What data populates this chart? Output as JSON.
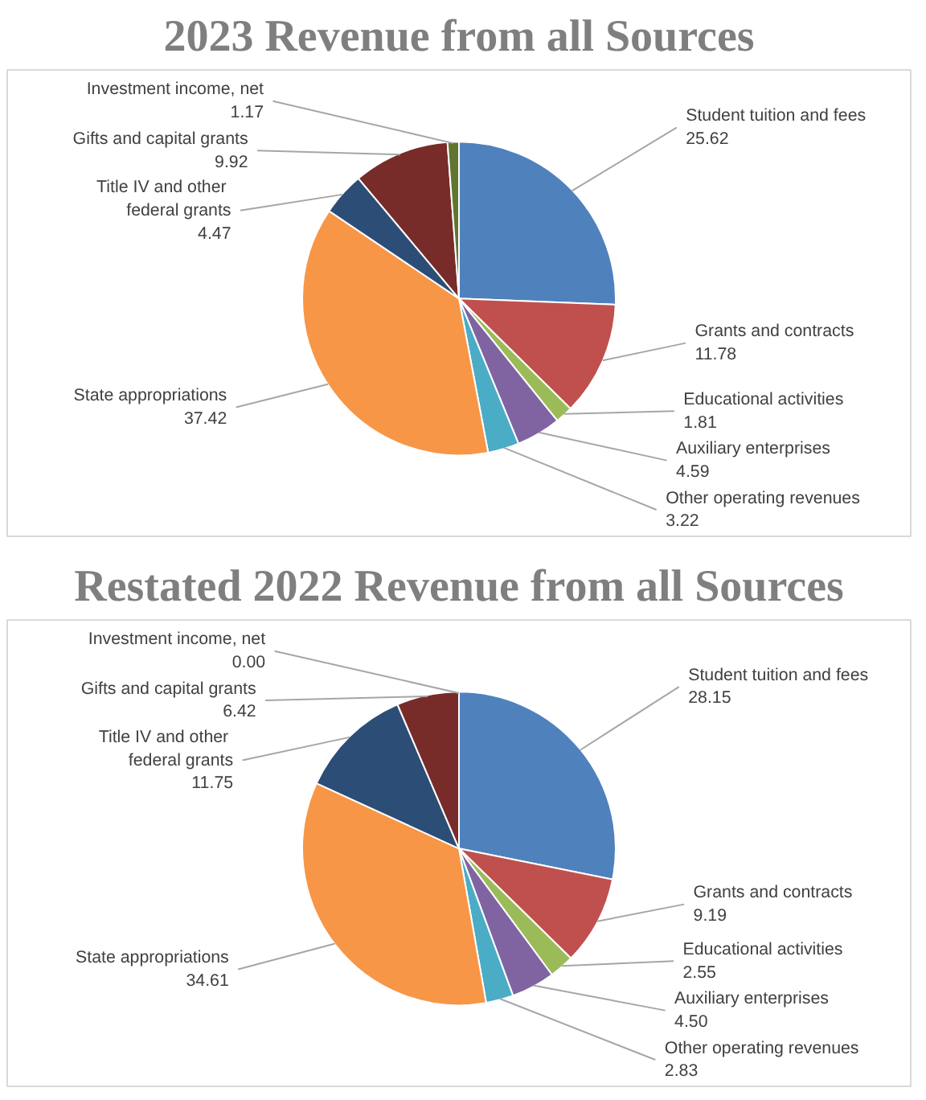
{
  "chart_data": [
    {
      "type": "pie",
      "title": "2023 Revenue from all Sources",
      "categories": [
        "Student tuition and fees",
        "Grants and contracts",
        "Educational activities",
        "Auxiliary enterprises",
        "Other operating revenues",
        "State appropriations",
        "Title IV  and other federal grants",
        "Gifts and capital grants",
        "Investment income, net"
      ],
      "values": [
        25.62,
        11.78,
        1.81,
        4.59,
        3.22,
        37.42,
        4.47,
        9.92,
        1.17
      ],
      "value_labels": [
        "25.62",
        "11.78",
        "1.81",
        "4.59",
        "3.22",
        "37.42",
        "4.47",
        "9.92",
        "1.17"
      ],
      "colors": [
        "#4f81bd",
        "#c0504d",
        "#9bbb59",
        "#8064a2",
        "#4bacc6",
        "#f79646",
        "#2c4d75",
        "#772c2a",
        "#5f7530"
      ]
    },
    {
      "type": "pie",
      "title": "Restated 2022 Revenue from all Sources",
      "categories": [
        "Student tuition and fees",
        "Grants and contracts",
        "Educational activities",
        "Auxiliary enterprises",
        "Other operating revenues",
        "State appropriations",
        "Title IV  and other federal grants",
        "Gifts and capital grants",
        "Investment income, net"
      ],
      "values": [
        28.15,
        9.19,
        2.55,
        4.5,
        2.83,
        34.61,
        11.75,
        6.42,
        0.0
      ],
      "value_labels": [
        "28.15",
        "9.19",
        "2.55",
        "4.50",
        "2.83",
        "34.61",
        "11.75",
        "6.42",
        "0.00"
      ],
      "colors": [
        "#4f81bd",
        "#c0504d",
        "#9bbb59",
        "#8064a2",
        "#4bacc6",
        "#f79646",
        "#2c4d75",
        "#772c2a",
        "#5f7530"
      ]
    }
  ]
}
